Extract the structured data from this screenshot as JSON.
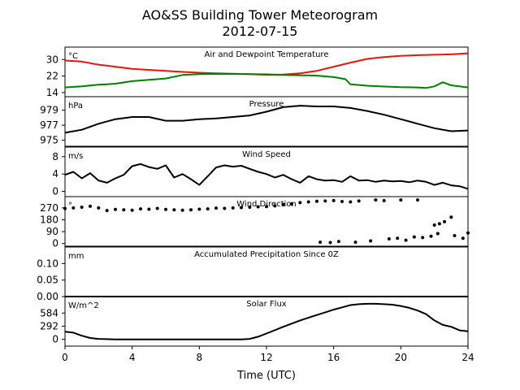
{
  "title": "AO&SS Building Tower Meteorogram",
  "subtitle": "2012-07-15",
  "xlabel": "Time (UTC)",
  "x_ticks": [
    0,
    4,
    8,
    12,
    16,
    20,
    24
  ],
  "colors": {
    "temperature": "#e8150b",
    "dewpoint": "#008000",
    "default": "#000000"
  },
  "chart_data": [
    {
      "type": "line",
      "title": "Air and Dewpoint Temperature",
      "unit": "°C",
      "ylim": [
        12,
        36
      ],
      "y_ticks": [
        14,
        22,
        30
      ],
      "series": [
        {
          "color_key": "temperature",
          "x": [
            0,
            1,
            2,
            3,
            4,
            5,
            6,
            7,
            8,
            9,
            10,
            11,
            12,
            13,
            14,
            15,
            16,
            17,
            18,
            19,
            20,
            21,
            22,
            23,
            24
          ],
          "y": [
            29.5,
            29,
            27.5,
            26.5,
            25.5,
            25,
            24.5,
            24,
            23.6,
            23.3,
            23.1,
            22.9,
            22.6,
            22.7,
            23.3,
            24.5,
            26.5,
            28.5,
            30.3,
            31.2,
            31.8,
            32.1,
            32.3,
            32.5,
            33
          ]
        },
        {
          "color_key": "dewpoint",
          "x": [
            0,
            1,
            2,
            3,
            4,
            5,
            6,
            7,
            8,
            9,
            10,
            11,
            12,
            13,
            14,
            15,
            16,
            16.7,
            17,
            18,
            19,
            20,
            21,
            21.5,
            22,
            22.5,
            23,
            24
          ],
          "y": [
            16.5,
            17,
            17.8,
            18.3,
            19.5,
            20.2,
            20.8,
            22.5,
            22.9,
            23,
            23,
            22.9,
            22.8,
            22.5,
            22.4,
            22.2,
            21.5,
            20.5,
            18,
            17.3,
            16.9,
            16.6,
            16.5,
            16.2,
            17,
            19,
            17.5,
            16.5
          ]
        }
      ]
    },
    {
      "type": "line",
      "title": "Pressure",
      "unit": "hPa",
      "ylim": [
        974.2,
        980.8
      ],
      "y_ticks": [
        975,
        977,
        979
      ],
      "series": [
        {
          "color_key": "default",
          "x": [
            0,
            1,
            2,
            3,
            4,
            5,
            6,
            7,
            8,
            9,
            10,
            11,
            12,
            13,
            14,
            15,
            16,
            17,
            18,
            19,
            20,
            21,
            22,
            23,
            24
          ],
          "y": [
            976,
            976.4,
            977.2,
            977.8,
            978.1,
            978.1,
            977.6,
            977.6,
            977.8,
            977.9,
            978.1,
            978.3,
            978.8,
            979.4,
            979.6,
            979.5,
            979.5,
            979.3,
            978.9,
            978.4,
            977.8,
            977.2,
            976.6,
            976.2,
            976.3
          ]
        }
      ]
    },
    {
      "type": "line",
      "title": "Wind Speed",
      "unit": "m/s",
      "ylim": [
        -1.2,
        10.2
      ],
      "y_ticks": [
        0,
        4,
        8
      ],
      "series": [
        {
          "color_key": "default",
          "x": [
            0,
            0.5,
            1,
            1.5,
            2,
            2.5,
            3,
            3.5,
            4,
            4.5,
            5,
            5.5,
            6,
            6.5,
            7,
            7.5,
            8,
            8.5,
            9,
            9.5,
            10,
            10.5,
            11,
            11.5,
            12,
            12.5,
            13,
            13.5,
            14,
            14.5,
            15,
            15.5,
            16,
            16.5,
            17,
            17.5,
            18,
            18.5,
            19,
            19.5,
            20,
            20.5,
            21,
            21.5,
            22,
            22.5,
            23,
            23.5,
            24
          ],
          "y": [
            3.8,
            4.5,
            3,
            4.2,
            2.5,
            2,
            3,
            3.8,
            5.8,
            6.3,
            5.6,
            5.2,
            6,
            3.2,
            4,
            2.8,
            1.5,
            3.5,
            5.5,
            6,
            5.7,
            5.9,
            5.2,
            4.5,
            4,
            3.2,
            3.8,
            2.8,
            2,
            3.5,
            2.8,
            2.5,
            2.6,
            2.2,
            3.5,
            2.5,
            2.6,
            2.2,
            2.5,
            2.3,
            2.4,
            2.1,
            2.5,
            2.2,
            1.5,
            2,
            1.4,
            1.2,
            0.6
          ]
        }
      ]
    },
    {
      "type": "scatter",
      "title": "Wind Direction",
      "unit": "°",
      "ylim": [
        -20,
        355
      ],
      "y_ticks": [
        0,
        90,
        180,
        270
      ],
      "series": [
        {
          "color_key": "default",
          "x": [
            0,
            0.5,
            1,
            1.5,
            2,
            2.5,
            3,
            3.5,
            4,
            4.5,
            5,
            5.5,
            6,
            6.5,
            7,
            7.5,
            8,
            8.5,
            9,
            9.5,
            10,
            10.5,
            11,
            11.5,
            12,
            12.5,
            13,
            13.5,
            14,
            14.5,
            15,
            15.5,
            16,
            16.5,
            17,
            17.5,
            18.5,
            19,
            20,
            21,
            22,
            22.3,
            22.6,
            23,
            15.2,
            15.8,
            16.3,
            17.3,
            18.2,
            19.3,
            19.8,
            20.3,
            20.8,
            21.3,
            21.8,
            22.2,
            23.2,
            23.7,
            24
          ],
          "y": [
            265,
            270,
            275,
            282,
            270,
            250,
            258,
            255,
            252,
            262,
            260,
            266,
            258,
            255,
            252,
            255,
            260,
            262,
            268,
            266,
            270,
            272,
            275,
            278,
            280,
            285,
            295,
            300,
            310,
            315,
            320,
            322,
            325,
            318,
            315,
            322,
            330,
            325,
            330,
            330,
            140,
            150,
            165,
            200,
            10,
            8,
            15,
            10,
            20,
            35,
            40,
            25,
            50,
            45,
            55,
            75,
            60,
            40,
            80
          ]
        }
      ]
    },
    {
      "type": "line",
      "title": "Accumulated Precipitation Since 0Z",
      "unit": "mm",
      "ylim": [
        0,
        0.15
      ],
      "y_ticks": [
        0.0,
        0.05,
        0.1
      ],
      "y_tick_labels": [
        "0.00",
        "0.05",
        "0.10"
      ],
      "series": [
        {
          "color_key": "default",
          "x": [
            0,
            24
          ],
          "y": [
            0,
            0
          ]
        }
      ]
    },
    {
      "type": "line",
      "title": "Solar Flux",
      "unit": "W/m^2",
      "ylim": [
        -150,
        950
      ],
      "y_ticks": [
        0,
        292,
        584
      ],
      "series": [
        {
          "color_key": "default",
          "x": [
            0,
            0.5,
            1,
            1.5,
            2,
            3,
            4,
            5,
            6,
            7,
            8,
            9,
            10,
            10.5,
            11,
            11.5,
            12,
            13,
            14,
            15,
            15.5,
            16,
            16.5,
            17,
            17.5,
            18,
            18.5,
            19,
            19.5,
            20,
            20.5,
            21,
            21.5,
            22,
            22.5,
            23,
            23.5,
            24
          ],
          "y": [
            170,
            150,
            80,
            30,
            10,
            0,
            0,
            0,
            0,
            0,
            0,
            0,
            0,
            0,
            10,
            60,
            130,
            280,
            420,
            540,
            600,
            660,
            710,
            760,
            780,
            790,
            790,
            780,
            770,
            740,
            700,
            640,
            560,
            420,
            320,
            280,
            200,
            180
          ]
        }
      ]
    }
  ]
}
